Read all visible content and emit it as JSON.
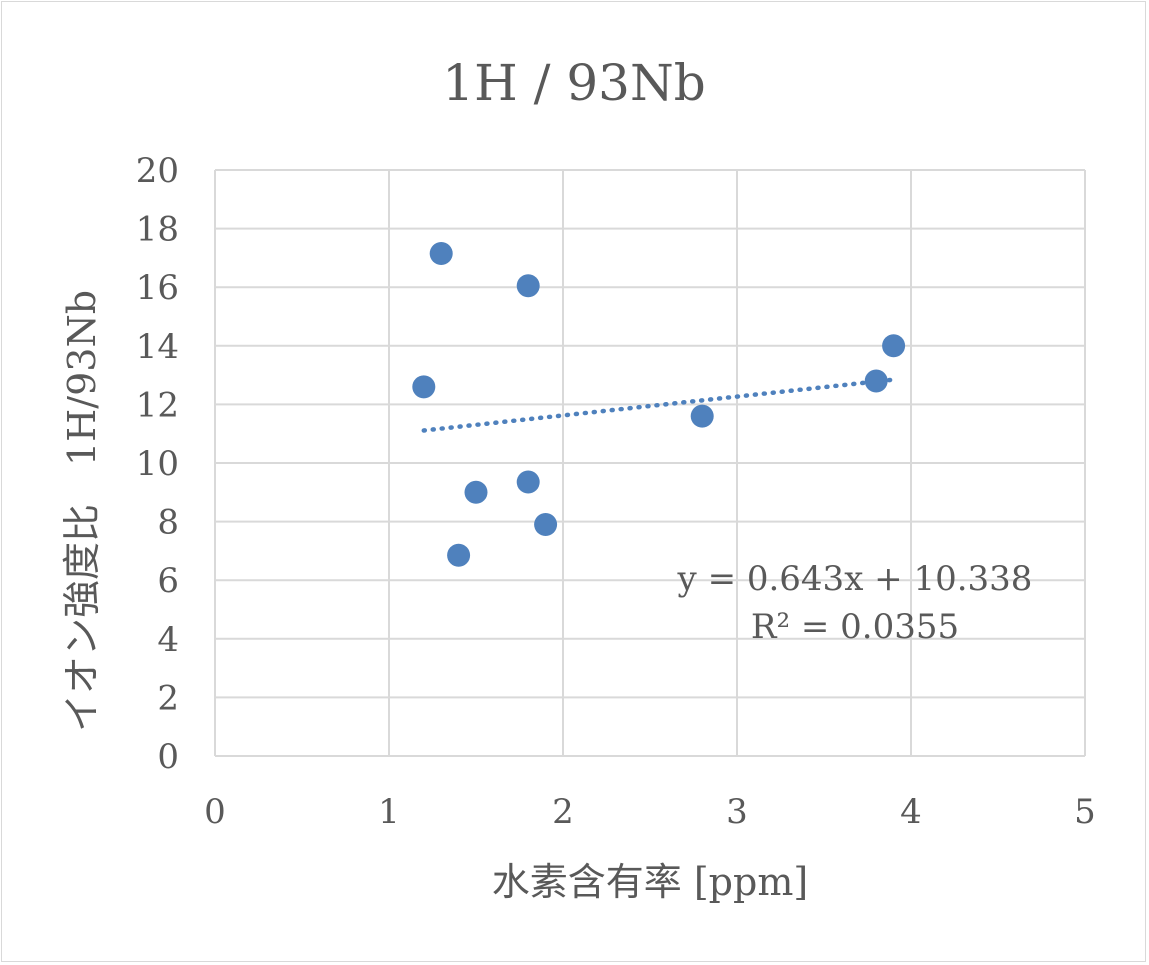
{
  "chart_data": {
    "type": "scatter",
    "title": "1H / 93Nb",
    "xlabel": "水素含有率 [ppm]",
    "ylabel": "イオン強度比　1H/93Nb",
    "xlim": [
      0,
      5
    ],
    "ylim": [
      0,
      20
    ],
    "x_ticks": [
      "0",
      "1",
      "2",
      "3",
      "4",
      "5"
    ],
    "y_ticks": [
      "0",
      "2",
      "4",
      "6",
      "8",
      "10",
      "12",
      "14",
      "16",
      "18",
      "20"
    ],
    "grid": true,
    "legend": "none",
    "series": [
      {
        "points": [
          {
            "x": 1.2,
            "y": 12.6
          },
          {
            "x": 1.3,
            "y": 17.15
          },
          {
            "x": 1.4,
            "y": 6.85
          },
          {
            "x": 1.5,
            "y": 9.0
          },
          {
            "x": 1.8,
            "y": 16.05
          },
          {
            "x": 1.8,
            "y": 9.35
          },
          {
            "x": 1.9,
            "y": 7.9
          },
          {
            "x": 2.8,
            "y": 11.6
          },
          {
            "x": 3.8,
            "y": 12.8
          },
          {
            "x": 3.9,
            "y": 14.0
          }
        ],
        "color": "#4f81bd"
      }
    ],
    "trendline": {
      "type": "linear",
      "slope": 0.643,
      "intercept": 10.338,
      "x_range": [
        1.2,
        3.9
      ],
      "style": "dotted",
      "color": "#4f81bd",
      "equation_label": "y = 0.643x + 10.338",
      "r2_label": "R² = 0.0355"
    }
  },
  "colors": {
    "grid": "#d9d9d9",
    "text": "#595959",
    "point": "#4f81bd"
  }
}
